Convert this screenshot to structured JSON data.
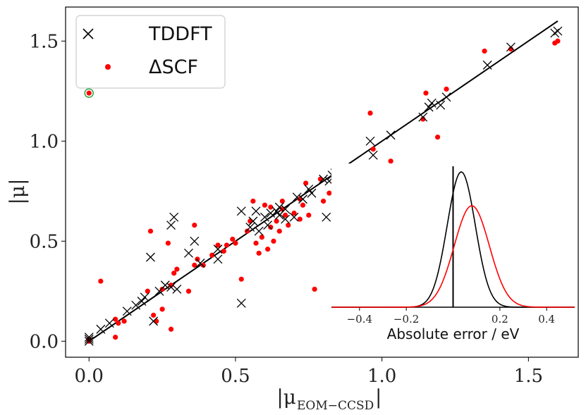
{
  "chart_data": [
    {
      "type": "scatter",
      "title": "",
      "xlabel": "|μ",
      "xlabel_subscript": "EOM−CCSD",
      "xlabel_close": "|",
      "ylabel": "|μ|",
      "xlim": [
        -0.08,
        1.67
      ],
      "ylim": [
        -0.08,
        1.67
      ],
      "xticks": [
        0.0,
        0.5,
        1.0,
        1.5
      ],
      "xtick_labels": [
        "0.0",
        "0.5",
        "1.0",
        "1.5"
      ],
      "yticks": [
        0.0,
        0.5,
        1.0,
        1.5
      ],
      "ytick_labels": [
        "0.0",
        "0.5",
        "1.0",
        "1.5"
      ],
      "grid": false,
      "legend_position": "top-left",
      "series": [
        {
          "name": "TDDFT",
          "marker": "x",
          "color": "#000000",
          "points": [
            [
              0.0,
              0.0
            ],
            [
              0.0,
              0.01
            ],
            [
              0.0,
              0.02
            ],
            [
              0.04,
              0.06
            ],
            [
              0.07,
              0.09
            ],
            [
              0.13,
              0.15
            ],
            [
              0.16,
              0.18
            ],
            [
              0.18,
              0.2
            ],
            [
              0.19,
              0.22
            ],
            [
              0.21,
              0.42
            ],
            [
              0.22,
              0.1
            ],
            [
              0.24,
              0.25
            ],
            [
              0.26,
              0.28
            ],
            [
              0.28,
              0.58
            ],
            [
              0.29,
              0.62
            ],
            [
              0.28,
              0.27
            ],
            [
              0.3,
              0.26
            ],
            [
              0.34,
              0.44
            ],
            [
              0.36,
              0.5
            ],
            [
              0.38,
              0.39
            ],
            [
              0.44,
              0.41
            ],
            [
              0.44,
              0.46
            ],
            [
              0.52,
              0.65
            ],
            [
              0.52,
              0.19
            ],
            [
              0.55,
              0.57
            ],
            [
              0.56,
              0.6
            ],
            [
              0.57,
              0.65
            ],
            [
              0.58,
              0.55
            ],
            [
              0.6,
              0.62
            ],
            [
              0.61,
              0.58
            ],
            [
              0.62,
              0.64
            ],
            [
              0.64,
              0.65
            ],
            [
              0.65,
              0.63
            ],
            [
              0.65,
              0.67
            ],
            [
              0.67,
              0.66
            ],
            [
              0.7,
              0.62
            ],
            [
              0.71,
              0.72
            ],
            [
              0.73,
              0.71
            ],
            [
              0.75,
              0.76
            ],
            [
              0.76,
              0.74
            ],
            [
              0.8,
              0.81
            ],
            [
              0.82,
              0.8
            ],
            [
              0.83,
              0.83
            ],
            [
              0.84,
              0.84
            ],
            [
              0.85,
              0.82
            ],
            [
              0.87,
              0.79
            ],
            [
              0.96,
              1.0
            ],
            [
              0.97,
              0.93
            ],
            [
              1.03,
              1.03
            ],
            [
              1.14,
              1.12
            ],
            [
              1.16,
              1.17
            ],
            [
              1.17,
              1.19
            ],
            [
              1.2,
              1.18
            ],
            [
              1.22,
              1.22
            ],
            [
              1.36,
              1.38
            ],
            [
              1.44,
              1.47
            ],
            [
              1.59,
              1.54
            ],
            [
              1.6,
              1.55
            ],
            [
              0.81,
              0.62
            ],
            [
              0.67,
              0.61
            ]
          ]
        },
        {
          "name": "ΔSCF",
          "marker": "o",
          "color": "#ff0000",
          "points": [
            [
              0.0,
              0.0
            ],
            [
              0.0,
              0.01
            ],
            [
              0.04,
              0.3
            ],
            [
              0.09,
              0.11
            ],
            [
              0.09,
              0.02
            ],
            [
              0.1,
              0.09
            ],
            [
              0.12,
              0.1
            ],
            [
              0.2,
              0.25
            ],
            [
              0.21,
              0.55
            ],
            [
              0.22,
              0.13
            ],
            [
              0.23,
              0.1
            ],
            [
              0.25,
              0.16
            ],
            [
              0.25,
              0.26
            ],
            [
              0.27,
              0.49
            ],
            [
              0.28,
              0.28
            ],
            [
              0.28,
              0.06
            ],
            [
              0.29,
              0.34
            ],
            [
              0.3,
              0.36
            ],
            [
              0.34,
              0.25
            ],
            [
              0.36,
              0.58
            ],
            [
              0.36,
              0.38
            ],
            [
              0.37,
              0.41
            ],
            [
              0.39,
              0.38
            ],
            [
              0.42,
              0.43
            ],
            [
              0.44,
              0.48
            ],
            [
              0.47,
              0.48
            ],
            [
              0.49,
              0.51
            ],
            [
              0.52,
              0.31
            ],
            [
              0.54,
              0.55
            ],
            [
              0.55,
              0.6
            ],
            [
              0.56,
              0.7
            ],
            [
              0.57,
              0.49
            ],
            [
              0.58,
              0.44
            ],
            [
              0.59,
              0.52
            ],
            [
              0.6,
              0.68
            ],
            [
              0.61,
              0.46
            ],
            [
              0.62,
              0.57
            ],
            [
              0.63,
              0.5
            ],
            [
              0.64,
              0.6
            ],
            [
              0.65,
              0.55
            ],
            [
              0.66,
              0.7
            ],
            [
              0.67,
              0.63
            ],
            [
              0.68,
              0.58
            ],
            [
              0.7,
              0.64
            ],
            [
              0.72,
              0.61
            ],
            [
              0.73,
              0.68
            ],
            [
              0.74,
              0.79
            ],
            [
              0.75,
              0.63
            ],
            [
              0.77,
              0.26
            ],
            [
              0.79,
              0.81
            ],
            [
              0.8,
              0.7
            ],
            [
              0.82,
              0.74
            ],
            [
              0.84,
              0.72
            ],
            [
              0.86,
              0.68
            ],
            [
              0.87,
              0.78
            ],
            [
              0.96,
              1.14
            ],
            [
              0.97,
              0.96
            ],
            [
              0.99,
              0.75
            ],
            [
              1.03,
              0.9
            ],
            [
              1.14,
              1.11
            ],
            [
              1.15,
              1.24
            ],
            [
              1.19,
              1.02
            ],
            [
              1.22,
              1.26
            ],
            [
              1.35,
              1.45
            ],
            [
              1.44,
              1.46
            ],
            [
              1.59,
              1.49
            ],
            [
              1.6,
              1.5
            ],
            [
              0.62,
              0.67
            ],
            [
              0.5,
              0.49
            ],
            [
              0.66,
              0.66
            ],
            [
              0.72,
              0.71
            ],
            [
              0.46,
              0.45
            ]
          ]
        }
      ],
      "fit_line": {
        "name": "y = x",
        "x": [
          0.0,
          1.6
        ],
        "y": [
          0.0,
          1.6
        ],
        "color": "#000000"
      },
      "highlight_marker": {
        "x": 0.0,
        "y": 1.24,
        "note": "circled red point in legend area"
      }
    },
    {
      "type": "line",
      "title": "",
      "xlabel": "Absolute error / eV",
      "ylabel": "",
      "xlim": [
        -0.52,
        0.52
      ],
      "xticks": [
        -0.4,
        -0.2,
        0.2,
        0.4
      ],
      "xtick_labels": [
        "−0.4",
        "−0.2",
        "0.2",
        "0.4"
      ],
      "zero_line": 0.0,
      "series": [
        {
          "name": "TDDFT",
          "color": "#000000",
          "distribution": "gaussian",
          "mean": 0.035,
          "sd": 0.06,
          "peak": 1.0
        },
        {
          "name": "ΔSCF",
          "color": "#ff0000",
          "distribution": "gaussian",
          "mean": 0.08,
          "sd": 0.075,
          "peak": 0.75
        }
      ]
    }
  ],
  "legend": {
    "entries": [
      {
        "label": "TDDFT",
        "marker": "×",
        "color": "#000000"
      },
      {
        "label": "ΔSCF",
        "marker": "●",
        "color": "#ff0000"
      }
    ]
  }
}
